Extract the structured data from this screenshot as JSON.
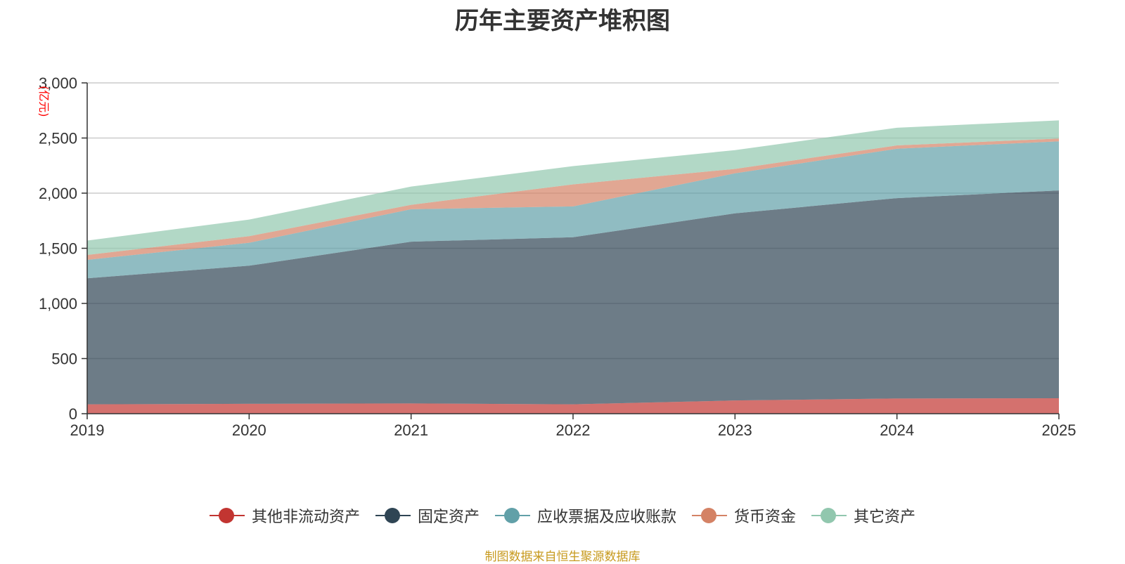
{
  "colors": {
    "其他非流动资产": "#c23531",
    "固定资产": "#2f4554",
    "应收票据及应收账款": "#61a0a8",
    "货币资金": "#d48265",
    "其它资产": "#91c7ae",
    "unit": "#ff0000",
    "source": "#c79a1e",
    "axis": "#333333",
    "grid": "#cccccc"
  },
  "chart_data": {
    "type": "area",
    "stacked": true,
    "title": "历年主要资产堆积图",
    "ylabel": "(亿元)",
    "xlabel": "",
    "x": [
      "2019",
      "2020",
      "2021",
      "2022",
      "2023",
      "2024",
      "2025"
    ],
    "ylim": [
      0,
      3000
    ],
    "yticks": [
      0,
      500,
      1000,
      1500,
      2000,
      2500,
      3000
    ],
    "ytick_labels": [
      "0",
      "500",
      "1,000",
      "1,500",
      "2,000",
      "2,500",
      "3,000"
    ],
    "grid": true,
    "legend_position": "bottom-center",
    "series": [
      {
        "name": "其他非流动资产",
        "values": [
          85,
          90,
          93,
          85,
          120,
          138,
          140
        ]
      },
      {
        "name": "固定资产",
        "values": [
          1143,
          1252,
          1467,
          1515,
          1697,
          1817,
          1885
        ]
      },
      {
        "name": "应收票据及应收账款",
        "values": [
          167,
          208,
          294,
          280,
          363,
          448,
          445
        ]
      },
      {
        "name": "货币资金",
        "values": [
          45,
          60,
          40,
          200,
          40,
          30,
          25
        ]
      },
      {
        "name": "其它资产",
        "values": [
          130,
          150,
          166,
          165,
          170,
          160,
          165
        ]
      }
    ]
  },
  "source": "制图数据来自恒生聚源数据库"
}
